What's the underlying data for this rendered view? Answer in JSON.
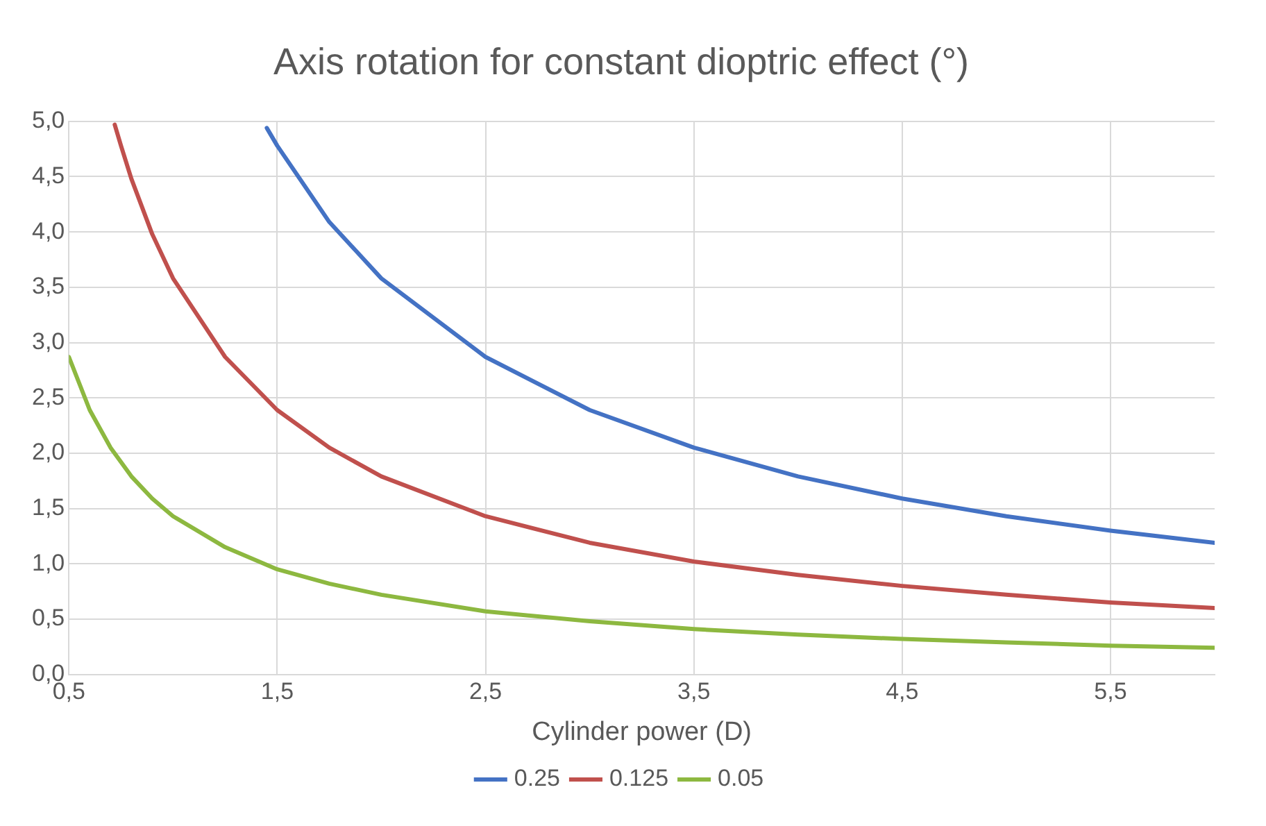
{
  "chart_data": {
    "type": "line",
    "title": "Axis rotation for constant dioptric effect (°)",
    "xlabel": "Cylinder power (D)",
    "xlim": [
      0.5,
      6
    ],
    "xticks": [
      {
        "value": 0.5,
        "label": "0,5"
      },
      {
        "value": 1.5,
        "label": "1,5"
      },
      {
        "value": 2.5,
        "label": "2,5"
      },
      {
        "value": 3.5,
        "label": "3,5"
      },
      {
        "value": 4.5,
        "label": "4,5"
      },
      {
        "value": 5.5,
        "label": "5,5"
      }
    ],
    "ylim": [
      0,
      5
    ],
    "yticks": [
      {
        "value": 0,
        "label": "0,0"
      },
      {
        "value": 0.5,
        "label": "0,5"
      },
      {
        "value": 1,
        "label": "1,0"
      },
      {
        "value": 1.5,
        "label": "1,5"
      },
      {
        "value": 2,
        "label": "2,0"
      },
      {
        "value": 2.5,
        "label": "2,5"
      },
      {
        "value": 3,
        "label": "3,0"
      },
      {
        "value": 3.5,
        "label": "3,5"
      },
      {
        "value": 4,
        "label": "4,0"
      },
      {
        "value": 4.5,
        "label": "4,5"
      },
      {
        "value": 5,
        "label": "5,0"
      }
    ],
    "grid": true,
    "legend": "bottom",
    "marker": "none",
    "line_style": "solid",
    "series": [
      {
        "name": "0.25",
        "color": "#4472c4",
        "x": [
          1.45,
          1.5,
          1.75,
          2,
          2.5,
          3,
          3.5,
          4,
          4.5,
          5,
          5.5,
          6
        ],
        "values": [
          4.94,
          4.78,
          4.09,
          3.58,
          2.87,
          2.39,
          2.05,
          1.79,
          1.59,
          1.43,
          1.3,
          1.19
        ]
      },
      {
        "name": "0.125",
        "color": "#c0504d",
        "x": [
          0.72,
          0.75,
          0.8,
          0.9,
          1,
          1.25,
          1.5,
          1.75,
          2,
          2.5,
          3,
          3.5,
          4,
          4.5,
          5,
          5.5,
          6
        ],
        "values": [
          4.97,
          4.78,
          4.48,
          3.98,
          3.58,
          2.87,
          2.39,
          2.05,
          1.79,
          1.43,
          1.19,
          1.02,
          0.9,
          0.8,
          0.72,
          0.65,
          0.6
        ]
      },
      {
        "name": "0.05",
        "color": "#8db840",
        "x": [
          0.5,
          0.6,
          0.7,
          0.8,
          0.9,
          1,
          1.25,
          1.5,
          1.75,
          2,
          2.5,
          3,
          3.5,
          4,
          4.5,
          5,
          5.5,
          6
        ],
        "values": [
          2.87,
          2.39,
          2.05,
          1.79,
          1.59,
          1.43,
          1.15,
          0.95,
          0.82,
          0.72,
          0.57,
          0.48,
          0.41,
          0.36,
          0.32,
          0.29,
          0.26,
          0.24
        ]
      }
    ]
  }
}
